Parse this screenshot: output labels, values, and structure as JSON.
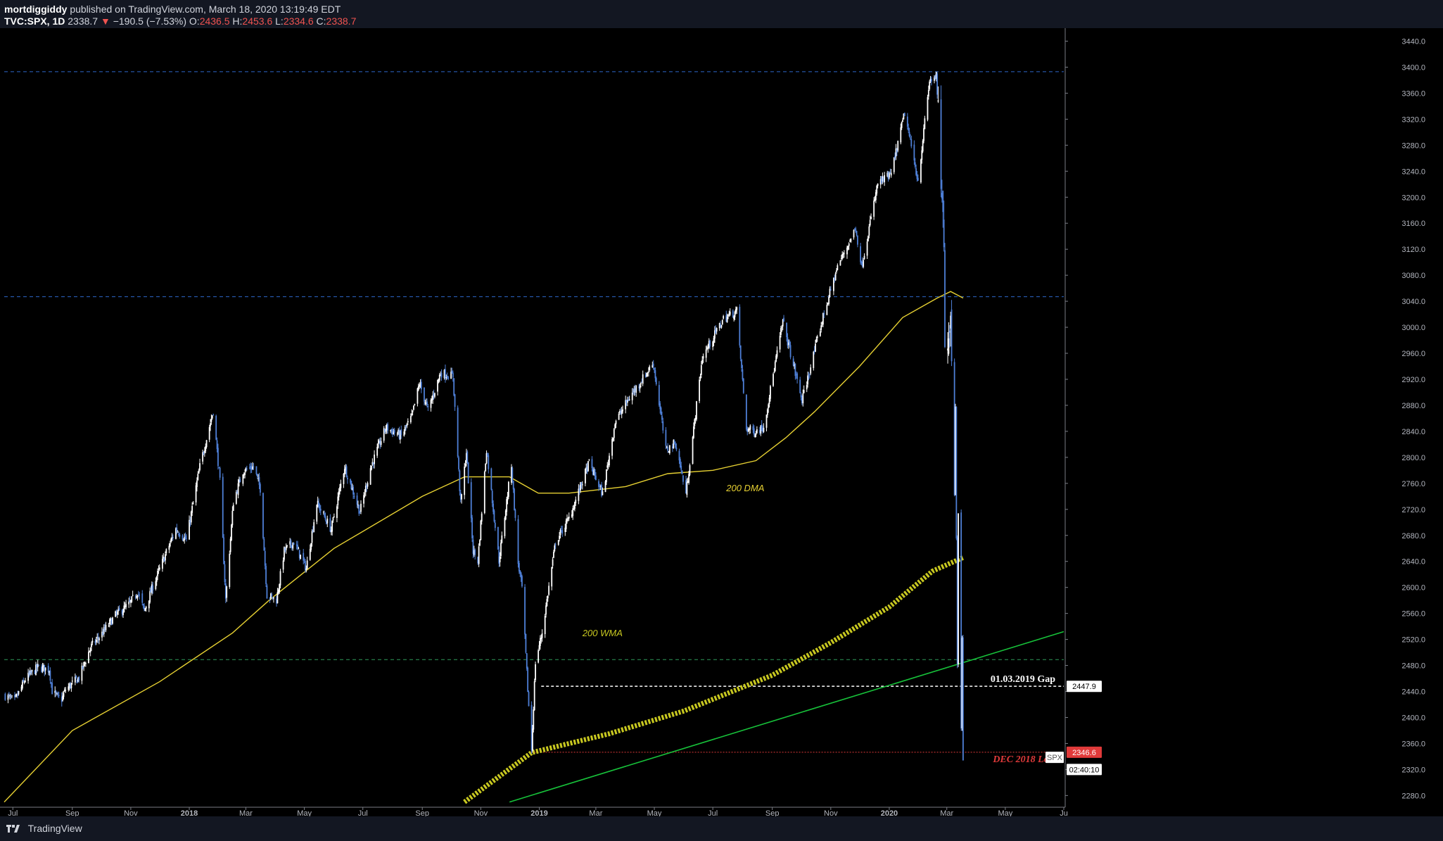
{
  "header": {
    "author": "mortdiggiddy",
    "published": "published on TradingView.com, March 18, 2020 13:19:49 EDT",
    "symbol": "TVC:SPX, 1D",
    "last": "2338.7",
    "arrow": "▼",
    "change": "−190.5 (−7.53%)",
    "o_label": "O:",
    "o": "2436.5",
    "h_label": "H:",
    "h": "2453.6",
    "l_label": "L:",
    "l": "2334.6",
    "c_label": "C:",
    "c": "2338.7"
  },
  "footer": {
    "brand": "TradingView"
  },
  "colors": {
    "background": "#000000",
    "panel": "#131722",
    "candle_up": "#ffffff",
    "candle_down": "#4e7fd6",
    "dma": "#e6d032",
    "wma": "#c8c820",
    "trendline": "#17c23a",
    "level_blue": "#2d67c9",
    "level_green": "#2e9a5a",
    "gap_line": "#ffffff",
    "dec_low": "#e03a3a"
  },
  "chart_data": {
    "type": "candlestick",
    "title": "",
    "xlabel": "",
    "ylabel": "",
    "x_range": [
      "2017-06-22",
      "2020-07-01"
    ],
    "ylim": [
      2262,
      3460
    ],
    "grid": false,
    "x_ticks": [
      {
        "date": "2017-07-01",
        "label": "Jul"
      },
      {
        "date": "2017-09-01",
        "label": "Sep"
      },
      {
        "date": "2017-11-01",
        "label": "Nov"
      },
      {
        "date": "2018-01-01",
        "label": "2018"
      },
      {
        "date": "2018-03-01",
        "label": "Mar"
      },
      {
        "date": "2018-05-01",
        "label": "May"
      },
      {
        "date": "2018-07-01",
        "label": "Jul"
      },
      {
        "date": "2018-09-01",
        "label": "Sep"
      },
      {
        "date": "2018-11-01",
        "label": "Nov"
      },
      {
        "date": "2019-01-01",
        "label": "2019"
      },
      {
        "date": "2019-03-01",
        "label": "Mar"
      },
      {
        "date": "2019-05-01",
        "label": "May"
      },
      {
        "date": "2019-07-01",
        "label": "Jul"
      },
      {
        "date": "2019-09-01",
        "label": "Sep"
      },
      {
        "date": "2019-11-01",
        "label": "Nov"
      },
      {
        "date": "2020-01-01",
        "label": "2020"
      },
      {
        "date": "2020-03-01",
        "label": "Mar"
      },
      {
        "date": "2020-05-01",
        "label": "May"
      },
      {
        "date": "2020-07-01",
        "label": "Ju"
      }
    ],
    "y_ticks": [
      "2280.0",
      "2320.0",
      "2360.0",
      "2400.0",
      "2440.0",
      "2480.0",
      "2520.0",
      "2560.0",
      "2600.0",
      "2640.0",
      "2680.0",
      "2720.0",
      "2760.0",
      "2800.0",
      "2840.0",
      "2880.0",
      "2920.0",
      "2960.0",
      "3000.0",
      "3040.0",
      "3080.0",
      "3120.0",
      "3160.0",
      "3200.0",
      "3240.0",
      "3280.0",
      "3320.0",
      "3360.0",
      "3400.0",
      "3440.0"
    ],
    "price_path": [
      [
        "2017-06-23",
        2434
      ],
      [
        "2017-07-03",
        2425
      ],
      [
        "2017-07-14",
        2459
      ],
      [
        "2017-07-27",
        2477
      ],
      [
        "2017-08-08",
        2474
      ],
      [
        "2017-08-11",
        2441
      ],
      [
        "2017-08-17",
        2430
      ],
      [
        "2017-08-21",
        2428
      ],
      [
        "2017-08-25",
        2443
      ],
      [
        "2017-09-08",
        2461
      ],
      [
        "2017-09-20",
        2508
      ],
      [
        "2017-10-02",
        2529
      ],
      [
        "2017-10-16",
        2557
      ],
      [
        "2017-10-31",
        2575
      ],
      [
        "2017-11-08",
        2594
      ],
      [
        "2017-11-15",
        2564
      ],
      [
        "2017-11-24",
        2602
      ],
      [
        "2017-12-04",
        2639
      ],
      [
        "2017-12-18",
        2690
      ],
      [
        "2017-12-29",
        2673
      ],
      [
        "2018-01-12",
        2786
      ],
      [
        "2018-01-26",
        2872
      ],
      [
        "2018-02-02",
        2762
      ],
      [
        "2018-02-08",
        2581
      ],
      [
        "2018-02-16",
        2732
      ],
      [
        "2018-02-26",
        2779
      ],
      [
        "2018-03-09",
        2786
      ],
      [
        "2018-03-16",
        2752
      ],
      [
        "2018-03-23",
        2588
      ],
      [
        "2018-04-02",
        2581
      ],
      [
        "2018-04-10",
        2656
      ],
      [
        "2018-04-20",
        2670
      ],
      [
        "2018-05-03",
        2629
      ],
      [
        "2018-05-14",
        2730
      ],
      [
        "2018-05-29",
        2689
      ],
      [
        "2018-06-12",
        2786
      ],
      [
        "2018-06-28",
        2716
      ],
      [
        "2018-07-09",
        2784
      ],
      [
        "2018-07-25",
        2846
      ],
      [
        "2018-08-10",
        2833
      ],
      [
        "2018-08-21",
        2862
      ],
      [
        "2018-08-29",
        2914
      ],
      [
        "2018-09-07",
        2872
      ],
      [
        "2018-09-20",
        2930
      ],
      [
        "2018-10-03",
        2925
      ],
      [
        "2018-10-11",
        2728
      ],
      [
        "2018-10-17",
        2809
      ],
      [
        "2018-10-24",
        2656
      ],
      [
        "2018-10-29",
        2641
      ],
      [
        "2018-11-07",
        2813
      ],
      [
        "2018-11-20",
        2641
      ],
      [
        "2018-12-03",
        2790
      ],
      [
        "2018-12-10",
        2637
      ],
      [
        "2018-12-14",
        2599
      ],
      [
        "2018-12-21",
        2417
      ],
      [
        "2018-12-24",
        2351
      ],
      [
        "2018-12-28",
        2485
      ],
      [
        "2019-01-04",
        2531
      ],
      [
        "2019-01-18",
        2670
      ],
      [
        "2019-02-01",
        2706
      ],
      [
        "2019-02-22",
        2792
      ],
      [
        "2019-03-08",
        2743
      ],
      [
        "2019-03-21",
        2854
      ],
      [
        "2019-04-05",
        2892
      ],
      [
        "2019-04-30",
        2945
      ],
      [
        "2019-05-13",
        2811
      ],
      [
        "2019-05-23",
        2822
      ],
      [
        "2019-06-03",
        2744
      ],
      [
        "2019-06-20",
        2954
      ],
      [
        "2019-07-12",
        3013
      ],
      [
        "2019-07-26",
        3025
      ],
      [
        "2019-08-05",
        2844
      ],
      [
        "2019-08-14",
        2840
      ],
      [
        "2019-08-23",
        2847
      ],
      [
        "2019-09-12",
        3009
      ],
      [
        "2019-10-02",
        2887
      ],
      [
        "2019-10-25",
        3022
      ],
      [
        "2019-11-08",
        3093
      ],
      [
        "2019-11-27",
        3153
      ],
      [
        "2019-12-03",
        3093
      ],
      [
        "2019-12-20",
        3221
      ],
      [
        "2020-01-03",
        3235
      ],
      [
        "2020-01-17",
        3330
      ],
      [
        "2020-01-31",
        3225
      ],
      [
        "2020-02-12",
        3379
      ],
      [
        "2020-02-19",
        3386
      ],
      [
        "2020-02-24",
        3226
      ],
      [
        "2020-02-27",
        3116
      ],
      [
        "2020-02-28",
        2954
      ],
      [
        "2020-03-03",
        3003
      ],
      [
        "2020-03-05",
        3023
      ],
      [
        "2020-03-09",
        2746
      ],
      [
        "2020-03-10",
        2882
      ],
      [
        "2020-03-12",
        2480
      ],
      [
        "2020-03-13",
        2711
      ],
      [
        "2020-03-16",
        2386
      ],
      [
        "2020-03-17",
        2529
      ],
      [
        "2020-03-18",
        2338
      ]
    ],
    "series": [
      {
        "name": "200 DMA",
        "type": "line",
        "points": [
          [
            "2017-06-22",
            2270
          ],
          [
            "2017-09-01",
            2380
          ],
          [
            "2017-12-01",
            2455
          ],
          [
            "2018-02-15",
            2530
          ],
          [
            "2018-03-25",
            2580
          ],
          [
            "2018-06-01",
            2660
          ],
          [
            "2018-09-01",
            2740
          ],
          [
            "2018-10-15",
            2770
          ],
          [
            "2018-12-01",
            2770
          ],
          [
            "2018-12-31",
            2745
          ],
          [
            "2019-02-01",
            2745
          ],
          [
            "2019-04-01",
            2755
          ],
          [
            "2019-05-15",
            2775
          ],
          [
            "2019-07-01",
            2780
          ],
          [
            "2019-08-15",
            2795
          ],
          [
            "2019-09-15",
            2830
          ],
          [
            "2019-10-15",
            2870
          ],
          [
            "2019-12-01",
            2940
          ],
          [
            "2020-01-15",
            3015
          ],
          [
            "2020-02-20",
            3045
          ],
          [
            "2020-03-05",
            3055
          ],
          [
            "2020-03-18",
            3045
          ]
        ]
      },
      {
        "name": "200 WMA",
        "type": "line",
        "points": [
          [
            "2018-10-15",
            2270
          ],
          [
            "2018-12-24",
            2346
          ],
          [
            "2019-03-15",
            2375
          ],
          [
            "2019-06-01",
            2410
          ],
          [
            "2019-09-01",
            2465
          ],
          [
            "2019-11-01",
            2515
          ],
          [
            "2020-01-01",
            2570
          ],
          [
            "2020-02-15",
            2625
          ],
          [
            "2020-03-18",
            2646
          ]
        ]
      },
      {
        "name": "",
        "type": "line",
        "points": [
          [
            "2018-12-01",
            2270
          ],
          [
            "2020-07-01",
            2532
          ]
        ]
      }
    ],
    "levels": [
      {
        "value": 3393,
        "color": "blue"
      },
      {
        "value": 3047,
        "color": "blue"
      },
      {
        "value": 2489,
        "color": "green"
      },
      {
        "value": 2448,
        "color": "white",
        "label": "01.03.2019 Gap",
        "start": "2019-01-03"
      },
      {
        "value": 2346.6,
        "color": "red",
        "label": "DEC 2018 Low",
        "start": "2018-12-24"
      }
    ],
    "annotations": [
      {
        "text": "200 DMA",
        "date": "2019-07-15",
        "value": 2748
      },
      {
        "text": "200 WMA",
        "date": "2019-02-15",
        "value": 2525
      }
    ],
    "price_tags": [
      {
        "text": "2447.9",
        "value": 2447.9,
        "kind": "gap"
      },
      {
        "text": "2346.6",
        "value": 2346.6,
        "kind": "low"
      },
      {
        "text": "SPX",
        "value": 2338.7,
        "kind": "last"
      },
      {
        "text": "02:40:10",
        "value": 2320,
        "kind": "timer"
      }
    ]
  }
}
